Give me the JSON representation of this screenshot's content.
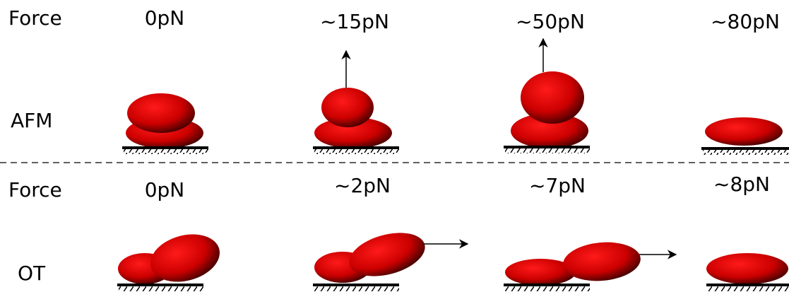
{
  "afm": {
    "force_label": "Force",
    "forces": [
      "0pN",
      "~15pN",
      "~50pN",
      "~80pN"
    ],
    "method": "AFM"
  },
  "ot": {
    "force_label": "Force",
    "forces": [
      "0pN",
      "~2pN",
      "~7pN",
      "~8pN"
    ],
    "method": "OT"
  }
}
